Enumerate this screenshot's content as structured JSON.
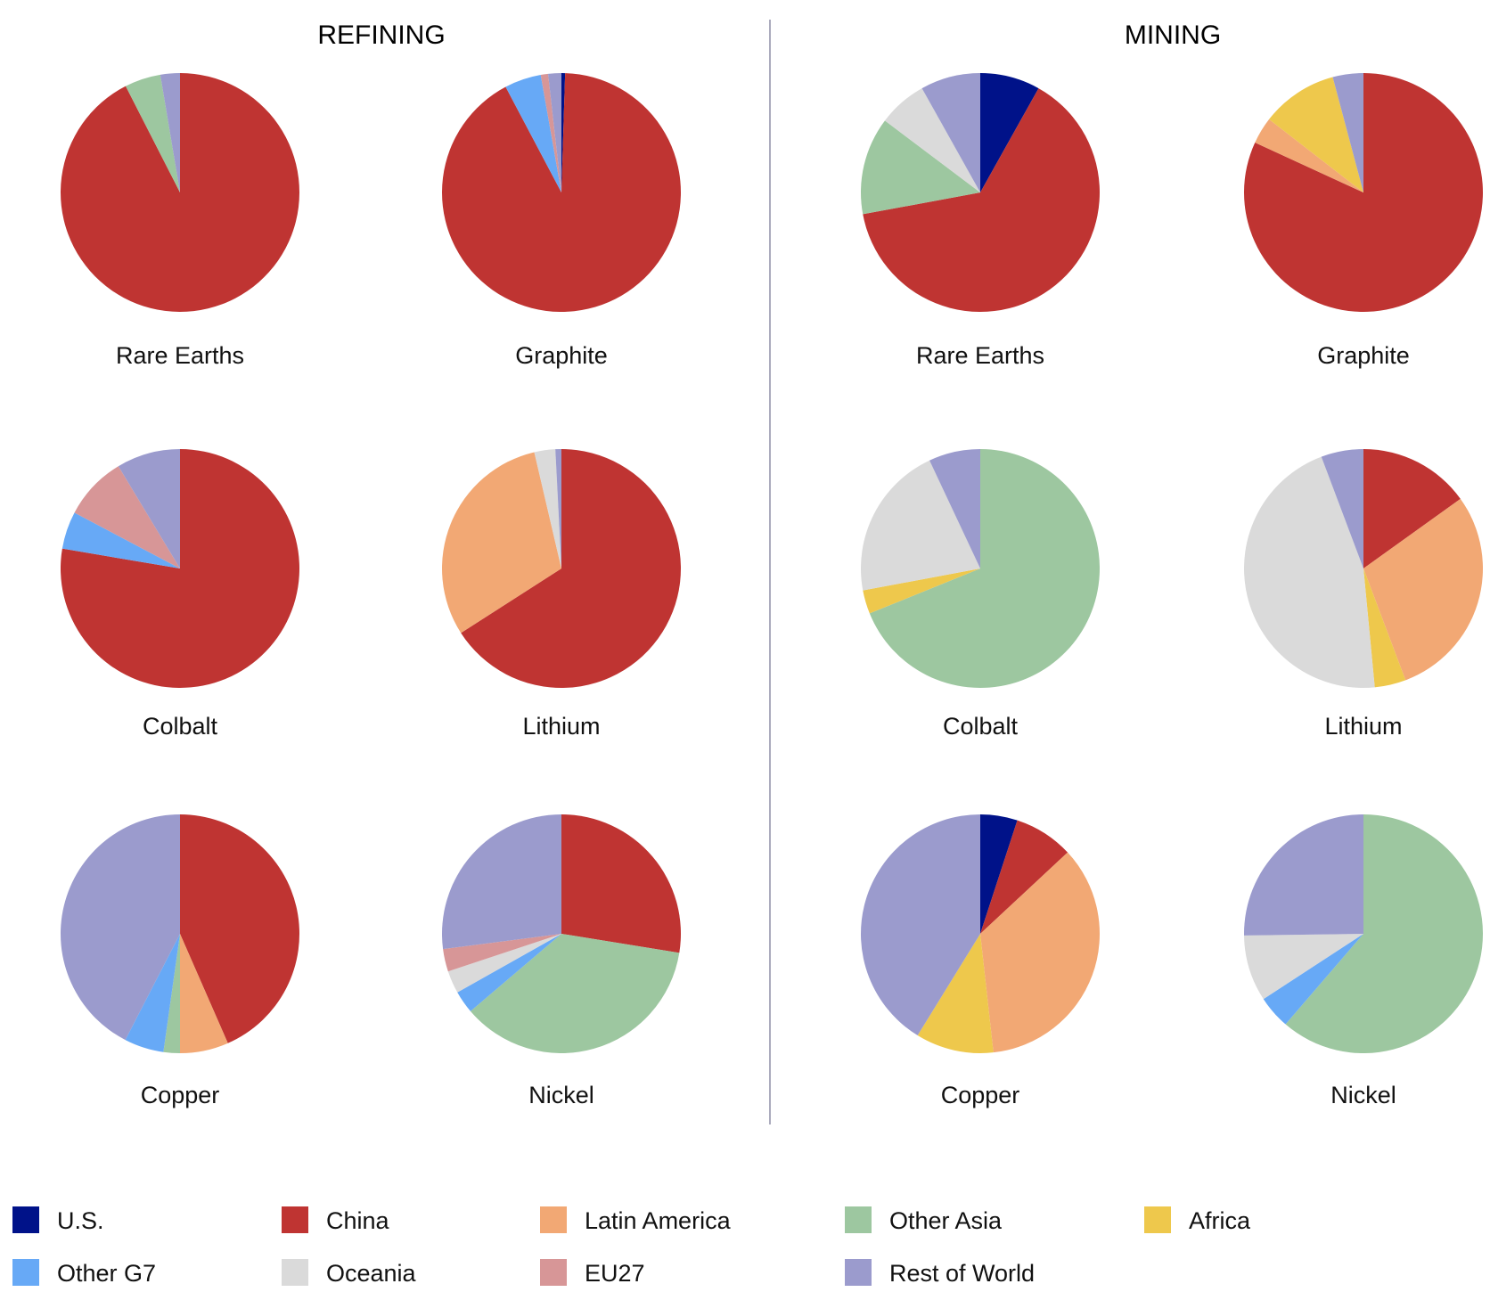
{
  "section_titles": {
    "refining": "REFINING",
    "mining": "MINING"
  },
  "colors": {
    "U.S.": "#001289",
    "China": "#BF3432",
    "Latin America": "#F2A874",
    "Other Asia": "#9DC7A0",
    "Africa": "#EEC84C",
    "Other G7": "#67A9F6",
    "Oceania": "#DADADA",
    "EU27": "#D79697",
    "Rest of World": "#9B9BCD"
  },
  "legend": {
    "items": [
      "U.S.",
      "China",
      "Latin America",
      "Other Asia",
      "Africa",
      "Other G7",
      "Oceania",
      "EU27",
      "Rest of World"
    ]
  },
  "chart_data": [
    {
      "type": "pie",
      "section": "REFINING",
      "title": "Rare Earths",
      "slices": [
        {
          "label": "China",
          "value": 91
        },
        {
          "label": "Other Asia",
          "value": 4.8
        },
        {
          "label": "Rest of World",
          "value": 2.6
        }
      ]
    },
    {
      "type": "pie",
      "section": "REFINING",
      "title": "Graphite",
      "slices": [
        {
          "label": "U.S.",
          "value": 0.5
        },
        {
          "label": "China",
          "value": 92.5
        },
        {
          "label": "Other G7",
          "value": 5
        },
        {
          "label": "EU27",
          "value": 1
        },
        {
          "label": "Rest of World",
          "value": 1.8
        }
      ]
    },
    {
      "type": "pie",
      "section": "REFINING",
      "title": "Colbalt",
      "slices": [
        {
          "label": "China",
          "value": 76.5
        },
        {
          "label": "Other G7",
          "value": 5
        },
        {
          "label": "EU27",
          "value": 8.5
        },
        {
          "label": "Rest of World",
          "value": 8.5
        }
      ]
    },
    {
      "type": "pie",
      "section": "REFINING",
      "title": "Lithium",
      "slices": [
        {
          "label": "China",
          "value": 65
        },
        {
          "label": "Latin America",
          "value": 30
        },
        {
          "label": "Oceania",
          "value": 2.8
        },
        {
          "label": "Rest of World",
          "value": 0.8
        }
      ]
    },
    {
      "type": "pie",
      "section": "REFINING",
      "title": "Copper",
      "slices": [
        {
          "label": "China",
          "value": 43
        },
        {
          "label": "Latin America",
          "value": 6.5
        },
        {
          "label": "Other Asia",
          "value": 2.2
        },
        {
          "label": "Other G7",
          "value": 5.3
        },
        {
          "label": "Rest of World",
          "value": 42
        }
      ]
    },
    {
      "type": "pie",
      "section": "REFINING",
      "title": "Nickel",
      "slices": [
        {
          "label": "China",
          "value": 27
        },
        {
          "label": "Other Asia",
          "value": 35.5
        },
        {
          "label": "Other G7",
          "value": 3
        },
        {
          "label": "Oceania",
          "value": 3
        },
        {
          "label": "EU27",
          "value": 3
        },
        {
          "label": "Rest of World",
          "value": 26.5
        }
      ]
    },
    {
      "type": "pie",
      "section": "MINING",
      "title": "Rare Earths",
      "slices": [
        {
          "label": "U.S.",
          "value": 8
        },
        {
          "label": "China",
          "value": 63
        },
        {
          "label": "Other Asia",
          "value": 13
        },
        {
          "label": "Oceania",
          "value": 6.5
        },
        {
          "label": "Rest of World",
          "value": 8
        }
      ]
    },
    {
      "type": "pie",
      "section": "MINING",
      "title": "Graphite",
      "slices": [
        {
          "label": "China",
          "value": 79
        },
        {
          "label": "Latin America",
          "value": 3.5
        },
        {
          "label": "Africa",
          "value": 10
        },
        {
          "label": "Rest of World",
          "value": 4
        }
      ]
    },
    {
      "type": "pie",
      "section": "MINING",
      "title": "Colbalt",
      "slices": [
        {
          "label": "Other Asia",
          "value": 69
        },
        {
          "label": "Africa",
          "value": 3.2
        },
        {
          "label": "Oceania",
          "value": 21
        },
        {
          "label": "Rest of World",
          "value": 7
        }
      ]
    },
    {
      "type": "pie",
      "section": "MINING",
      "title": "Lithium",
      "slices": [
        {
          "label": "China",
          "value": 15
        },
        {
          "label": "Latin America",
          "value": 29
        },
        {
          "label": "Africa",
          "value": 4.2
        },
        {
          "label": "Oceania",
          "value": 45.5
        },
        {
          "label": "Rest of World",
          "value": 5.7
        }
      ]
    },
    {
      "type": "pie",
      "section": "MINING",
      "title": "Copper",
      "slices": [
        {
          "label": "U.S.",
          "value": 5
        },
        {
          "label": "China",
          "value": 8
        },
        {
          "label": "Latin America",
          "value": 35
        },
        {
          "label": "Africa",
          "value": 10.5
        },
        {
          "label": "Rest of World",
          "value": 41
        }
      ]
    },
    {
      "type": "pie",
      "section": "MINING",
      "title": "Nickel",
      "slices": [
        {
          "label": "Other Asia",
          "value": 61.5
        },
        {
          "label": "Other G7",
          "value": 4.5
        },
        {
          "label": "Oceania",
          "value": 9
        },
        {
          "label": "Rest of World",
          "value": 25.3
        }
      ]
    }
  ]
}
